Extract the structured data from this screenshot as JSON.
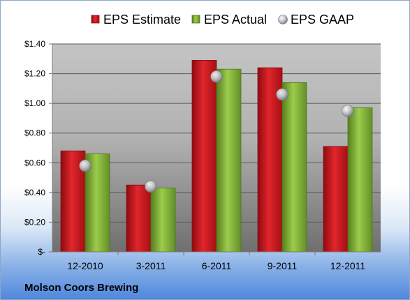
{
  "company": "Molson Coors Brewing",
  "colors": {
    "estimate": "#c8141c",
    "actual": "#6d9a2c",
    "gaap": "#b8bcc4"
  },
  "chart_data": {
    "type": "bar",
    "categories": [
      "12-2010",
      "3-2011",
      "6-2011",
      "9-2011",
      "12-2011"
    ],
    "series": [
      {
        "name": "EPS Estimate",
        "kind": "bar",
        "values": [
          0.68,
          0.45,
          1.29,
          1.24,
          0.71
        ]
      },
      {
        "name": "EPS Actual",
        "kind": "bar",
        "values": [
          0.66,
          0.43,
          1.23,
          1.14,
          0.97
        ]
      },
      {
        "name": "EPS GAAP",
        "kind": "marker",
        "values": [
          0.58,
          0.44,
          1.18,
          1.06,
          0.95
        ]
      }
    ],
    "y_ticks": [
      "$-",
      "$0.20",
      "$0.40",
      "$0.60",
      "$0.80",
      "$1.00",
      "$1.20",
      "$1.40"
    ],
    "ylim": [
      0,
      1.4
    ],
    "grid": true,
    "legend_position": "top"
  }
}
